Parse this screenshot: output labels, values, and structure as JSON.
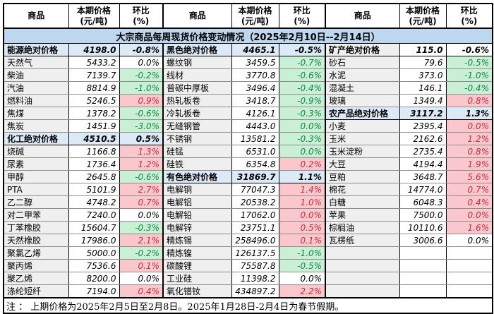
{
  "title": "大宗商品每周现货价格变动情况（2025年2月10日--2月14日）",
  "header": {
    "name": "商品",
    "price_line1": "本期价格",
    "price_line2": "(元/吨)",
    "pct_line1": "环比",
    "pct_line2": "(%)"
  },
  "note": "注 ： 上期价格为2025年2月5日至2月8日。2025年1月28日-2月4日为春节假期。",
  "colors": {
    "title_bg": "#BDD7EE",
    "section_bg": "#DCE9F7",
    "name_bg": "#EFEFEF",
    "up_bg": "#FAC7CD",
    "up_text": "#C2303E",
    "down_bg": "#C9EFD4",
    "down_text": "#13864B",
    "grid_line": "#8F8F8F",
    "frame_line": "#000000"
  },
  "rows": [
    [
      {
        "name": "能源绝对价格",
        "price": "4198.0",
        "pct": "-0.8%",
        "style": "section"
      },
      {
        "name": "黑色绝对价格",
        "price": "4465.1",
        "pct": "-0.5%",
        "style": "section"
      },
      {
        "name": "矿产绝对价格",
        "price": "115.0",
        "pct": "-0.6%",
        "style": "section-plain"
      }
    ],
    [
      {
        "name": "天然气",
        "price": "5433.2",
        "pct": "0.0%",
        "style": "flat"
      },
      {
        "name": "螺纹钢",
        "price": "3459.5",
        "pct": "-0.7%",
        "style": "down"
      },
      {
        "name": "砂石",
        "price": "79.6",
        "pct": "-0.5%",
        "style": "down"
      }
    ],
    [
      {
        "name": "柴油",
        "price": "7139.7",
        "pct": "-0.2%",
        "style": "down"
      },
      {
        "name": "线材",
        "price": "3770.8",
        "pct": "-0.6%",
        "style": "down"
      },
      {
        "name": "水泥",
        "price": "373.0",
        "pct": "-1.0%",
        "style": "down"
      }
    ],
    [
      {
        "name": "汽油",
        "price": "8814.9",
        "pct": "-1.0%",
        "style": "down"
      },
      {
        "name": "普碳中厚板",
        "price": "3496.4",
        "pct": "-0.4%",
        "style": "down"
      },
      {
        "name": "混凝土",
        "price": "146.1",
        "pct": "-0.4%",
        "style": "down"
      }
    ],
    [
      {
        "name": "燃料油",
        "price": "5246.5",
        "pct": "0.9%",
        "style": "up"
      },
      {
        "name": "热轧板卷",
        "price": "3418.7",
        "pct": "-0.9%",
        "style": "down"
      },
      {
        "name": "玻璃",
        "price": "1349.4",
        "pct": "0.8%",
        "style": "up"
      }
    ],
    [
      {
        "name": "焦煤",
        "price": "1378.2",
        "pct": "-0.6%",
        "style": "down"
      },
      {
        "name": "冷轧板卷",
        "price": "4126.1",
        "pct": "-0.3%",
        "style": "down"
      },
      {
        "name": "农产品绝对价格",
        "price": "3117.2",
        "pct": "1.3%",
        "style": "section"
      }
    ],
    [
      {
        "name": "焦炭",
        "price": "1451.9",
        "pct": "-3.0%",
        "style": "down"
      },
      {
        "name": "无缝钢管",
        "price": "4443.0",
        "pct": "0.0%",
        "style": "down"
      },
      {
        "name": "小麦",
        "price": "2395.4",
        "pct": "0.0%",
        "style": "up"
      }
    ],
    [
      {
        "name": "化工绝对价格",
        "price": "4510.5",
        "pct": "0.5%",
        "style": "section"
      },
      {
        "name": "不锈钢",
        "price": "13581.2",
        "pct": "-0.3%",
        "style": "down"
      },
      {
        "name": "玉米",
        "price": "2162.6",
        "pct": "1.2%",
        "style": "up"
      }
    ],
    [
      {
        "name": "烧碱",
        "price": "1166.8",
        "pct": "1.3%",
        "style": "up"
      },
      {
        "name": "硅锰",
        "price": "6531.0",
        "pct": "0.0%",
        "style": "down"
      },
      {
        "name": "玉米淀粉",
        "price": "2735.4",
        "pct": "0.8%",
        "style": "up"
      }
    ],
    [
      {
        "name": "尿素",
        "price": "1736.4",
        "pct": "1.2%",
        "style": "up"
      },
      {
        "name": "硅铁",
        "price": "6354.8",
        "pct": "0.2%",
        "style": "up"
      },
      {
        "name": "大豆",
        "price": "4194.4",
        "pct": "1.9%",
        "style": "up"
      }
    ],
    [
      {
        "name": "甲醇",
        "price": "2645.8",
        "pct": "-0.6%",
        "style": "down"
      },
      {
        "name": "有色绝对价格",
        "price": "31869.7",
        "pct": "1.1%",
        "style": "section"
      },
      {
        "name": "豆粕",
        "price": "3648.7",
        "pct": "5.6%",
        "style": "up"
      }
    ],
    [
      {
        "name": "PTA",
        "price": "5101.9",
        "pct": "2.7%",
        "style": "up"
      },
      {
        "name": "电解铜",
        "price": "77047.3",
        "pct": "1.4%",
        "style": "up"
      },
      {
        "name": "棉花",
        "price": "14774.0",
        "pct": "0.7%",
        "style": "up"
      }
    ],
    [
      {
        "name": "乙二醇",
        "price": "4748.2",
        "pct": "0.7%",
        "style": "up"
      },
      {
        "name": "电解铝",
        "price": "20538.2",
        "pct": "1.0%",
        "style": "up"
      },
      {
        "name": "白糖",
        "price": "6048.3",
        "pct": "0.4%",
        "style": "up"
      }
    ],
    [
      {
        "name": "对二甲苯",
        "price": "7240.0",
        "pct": "0.0%",
        "style": "flat"
      },
      {
        "name": "电解铅",
        "price": "17062.0",
        "pct": "0.0%",
        "style": "up"
      },
      {
        "name": "苹果",
        "price": "7500.0",
        "pct": "0.0%",
        "style": "up"
      }
    ],
    [
      {
        "name": "丁苯橡胶",
        "price": "15604.7",
        "pct": "-0.3%",
        "style": "down"
      },
      {
        "name": "电解锌",
        "price": "23751.1",
        "pct": "0.5%",
        "style": "up"
      },
      {
        "name": "棕榈油",
        "price": "10110.6",
        "pct": "1.6%",
        "style": "up"
      }
    ],
    [
      {
        "name": "天然橡胶",
        "price": "17986.0",
        "pct": "2.1%",
        "style": "up"
      },
      {
        "name": "精炼锡",
        "price": "258496.0",
        "pct": "0.1%",
        "style": "up"
      },
      {
        "name": "瓦楞纸",
        "price": "3006.6",
        "pct": "0.0%",
        "style": "flat"
      }
    ],
    [
      {
        "name": "聚氯乙烯",
        "price": "5000.0",
        "pct": "-0.2%",
        "style": "down"
      },
      {
        "name": "精炼镍",
        "price": "126137.5",
        "pct": "-1.0%",
        "style": "down"
      },
      {
        "name": "",
        "price": "",
        "pct": "",
        "style": "empty"
      }
    ],
    [
      {
        "name": "聚丙烯",
        "price": "7536.6",
        "pct": "0.1%",
        "style": "up"
      },
      {
        "name": "碳酸锂",
        "price": "75587.8",
        "pct": "-0.5%",
        "style": "down"
      },
      {
        "name": "",
        "price": "",
        "pct": "",
        "style": "empty"
      }
    ],
    [
      {
        "name": "聚乙烯",
        "price": "8200.0",
        "pct": "0.0%",
        "style": "flat"
      },
      {
        "name": "工业硅",
        "price": "11398.2",
        "pct": "0.0%",
        "style": "flat"
      },
      {
        "name": "",
        "price": "",
        "pct": "",
        "style": "empty"
      }
    ],
    [
      {
        "name": "涤纶短纤",
        "price": "7194.0",
        "pct": "0.4%",
        "style": "up"
      },
      {
        "name": "氧化镨钕",
        "price": "434897.2",
        "pct": "2.2%",
        "style": "up"
      },
      {
        "name": "",
        "price": "",
        "pct": "",
        "style": "empty"
      }
    ]
  ]
}
